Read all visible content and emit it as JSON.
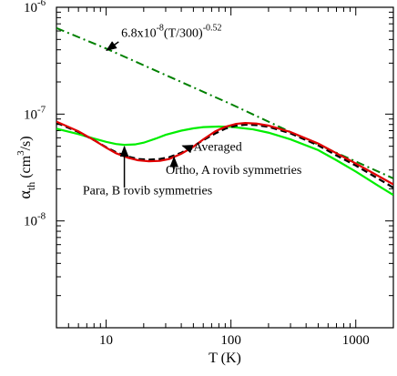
{
  "chart_data": {
    "type": "line",
    "title": "",
    "xlabel": "T (K)",
    "ylabel_main": "α",
    "ylabel_sub": "th",
    "ylabel_unit": " (cm",
    "ylabel_unit_sup": "3",
    "ylabel_unit_tail": "/s)",
    "x_scale": "log",
    "y_scale": "log",
    "xlim": [
      4,
      2000
    ],
    "ylim": [
      1e-09,
      1e-06
    ],
    "x_ticks": [
      10,
      100,
      1000
    ],
    "x_tick_labels": [
      "10",
      "100",
      "1000"
    ],
    "y_ticks": [
      1e-08,
      1e-07,
      1e-06
    ],
    "y_tick_labels": [
      {
        "base": "10",
        "exp": "-8"
      },
      {
        "base": "10",
        "exp": "-7"
      },
      {
        "base": "10",
        "exp": "-6"
      }
    ],
    "grid": false,
    "series": [
      {
        "key": "fit",
        "color": "#008000",
        "style": "dashdot",
        "x": [
          4,
          10,
          30,
          100,
          300,
          1000,
          2000
        ],
        "y": [
          6.39e-07,
          4.11e-07,
          2.32e-07,
          1.24e-07,
          6.8e-08,
          3.6e-08,
          2.5e-08
        ]
      },
      {
        "key": "para",
        "color": "#00ee00",
        "style": "solid",
        "x": [
          4,
          6,
          8,
          10,
          12,
          14,
          17,
          20,
          25,
          30,
          40,
          50,
          60,
          80,
          100,
          150,
          200,
          300,
          500,
          700,
          1000,
          1500,
          2000
        ],
        "y": [
          7.3e-08,
          6.5e-08,
          5.9e-08,
          5.5e-08,
          5.25e-08,
          5.15e-08,
          5.2e-08,
          5.4e-08,
          5.9e-08,
          6.4e-08,
          7e-08,
          7.35e-08,
          7.55e-08,
          7.65e-08,
          7.6e-08,
          7.2e-08,
          6.7e-08,
          5.8e-08,
          4.6e-08,
          3.7e-08,
          2.9e-08,
          2.15e-08,
          1.75e-08
        ]
      },
      {
        "key": "averaged",
        "color": "#000000",
        "style": "dashed",
        "x": [
          4,
          6,
          8,
          10,
          12,
          15,
          18,
          22,
          27,
          32,
          40,
          50,
          60,
          75,
          90,
          110,
          130,
          160,
          200,
          300,
          500,
          700,
          1000,
          1500,
          2000
        ],
        "y": [
          8.3e-08,
          6.8e-08,
          5.7e-08,
          4.9e-08,
          4.4e-08,
          4e-08,
          3.8e-08,
          3.75e-08,
          3.8e-08,
          3.95e-08,
          4.35e-08,
          5e-08,
          5.7e-08,
          6.6e-08,
          7.3e-08,
          7.8e-08,
          7.95e-08,
          7.9e-08,
          7.6e-08,
          6.6e-08,
          5.1e-08,
          4.1e-08,
          3.3e-08,
          2.5e-08,
          2.05e-08
        ]
      },
      {
        "key": "ortho",
        "color": "#e00000",
        "style": "solid",
        "x": [
          4,
          6,
          8,
          10,
          12,
          15,
          18,
          22,
          27,
          32,
          40,
          50,
          60,
          75,
          90,
          110,
          130,
          160,
          200,
          300,
          500,
          700,
          1000,
          1500,
          2000
        ],
        "y": [
          8.5e-08,
          6.9e-08,
          5.7e-08,
          4.85e-08,
          4.3e-08,
          3.9e-08,
          3.7e-08,
          3.62e-08,
          3.65e-08,
          3.8e-08,
          4.25e-08,
          4.95e-08,
          5.8e-08,
          6.9e-08,
          7.6e-08,
          8.1e-08,
          8.25e-08,
          8.15e-08,
          7.8e-08,
          6.8e-08,
          5.3e-08,
          4.3e-08,
          3.45e-08,
          2.65e-08,
          2.2e-08
        ]
      }
    ],
    "annotations": [
      {
        "key": "fit",
        "parts": [
          "6.8x10",
          "-8",
          "(T/300)",
          "-0.52"
        ],
        "text_at": [
          13.2,
          5.3e-07
        ],
        "arrow_from": [
          12.6,
          4.75e-07
        ],
        "arrow_to": [
          10.1,
          3.95e-07
        ]
      },
      {
        "key": "averaged",
        "text": "Averaged",
        "text_at": [
          50,
          4.55e-08
        ],
        "arrow_from": [
          49,
          4.7e-08
        ],
        "arrow_to": [
          41,
          5.05e-08
        ]
      },
      {
        "key": "ortho",
        "text": "Ortho, A rovib symmetries",
        "text_at": [
          30,
          2.75e-08
        ],
        "arrow_from": [
          35,
          3.05e-08
        ],
        "arrow_to": [
          35,
          3.95e-08
        ]
      },
      {
        "key": "para",
        "text": "Para, B rovib symmetries",
        "text_at": [
          6.5,
          1.78e-08
        ],
        "arrow_from": [
          14,
          2.05e-08
        ],
        "arrow_to": [
          14,
          4.95e-08
        ]
      }
    ]
  }
}
